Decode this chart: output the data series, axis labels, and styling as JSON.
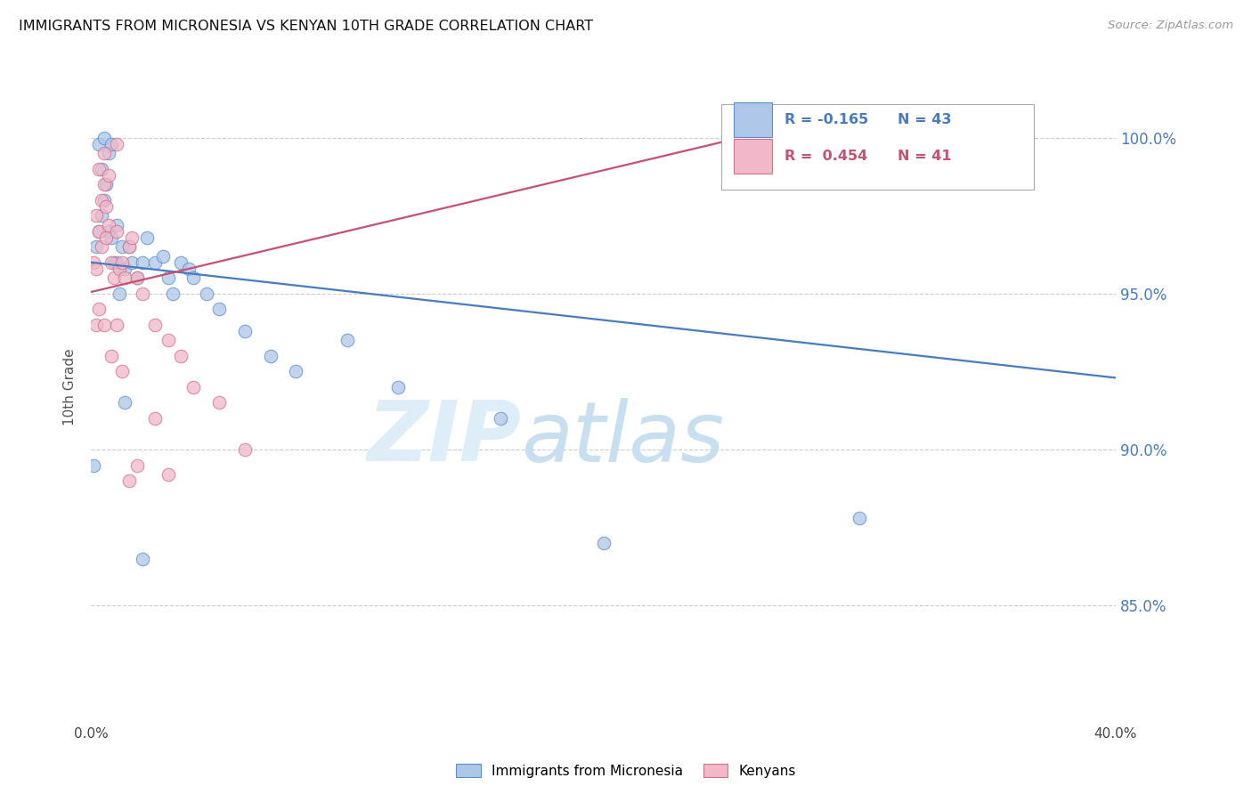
{
  "title": "IMMIGRANTS FROM MICRONESIA VS KENYAN 10TH GRADE CORRELATION CHART",
  "source": "Source: ZipAtlas.com",
  "ylabel": "10th Grade",
  "right_yticks": [
    "100.0%",
    "95.0%",
    "90.0%",
    "85.0%"
  ],
  "right_ytick_vals": [
    1.0,
    0.95,
    0.9,
    0.85
  ],
  "legend_blue_r": "R = -0.165",
  "legend_blue_n": "N = 43",
  "legend_pink_r": "R =  0.454",
  "legend_pink_n": "N = 41",
  "blue_color": "#aec6e8",
  "pink_color": "#f0b8c8",
  "blue_edge_color": "#5b8fc9",
  "pink_edge_color": "#d4708a",
  "blue_line_color": "#4a7abf",
  "pink_line_color": "#c85070",
  "background_color": "#ffffff",
  "grid_color": "#cccccc",
  "xmin": 0.0,
  "xmax": 0.4,
  "ymin": 0.818,
  "ymax": 1.022,
  "blue_line_x0": 0.0,
  "blue_line_x1": 0.4,
  "blue_line_y0": 0.96,
  "blue_line_y1": 0.923,
  "pink_line_x0": 0.0,
  "pink_line_x1": 0.305,
  "pink_line_y0": 0.9505,
  "pink_line_y1": 1.01,
  "blue_x": [
    0.001,
    0.002,
    0.003,
    0.003,
    0.004,
    0.004,
    0.005,
    0.005,
    0.006,
    0.007,
    0.007,
    0.008,
    0.008,
    0.009,
    0.01,
    0.01,
    0.011,
    0.012,
    0.013,
    0.015,
    0.016,
    0.018,
    0.02,
    0.022,
    0.025,
    0.028,
    0.03,
    0.032,
    0.035,
    0.038,
    0.04,
    0.045,
    0.05,
    0.06,
    0.07,
    0.08,
    0.1,
    0.12,
    0.16,
    0.2,
    0.013,
    0.02,
    0.3
  ],
  "blue_y": [
    0.895,
    0.965,
    0.97,
    0.998,
    0.975,
    0.99,
    0.98,
    1.0,
    0.985,
    0.995,
    0.97,
    0.968,
    0.998,
    0.96,
    0.972,
    0.96,
    0.95,
    0.965,
    0.958,
    0.965,
    0.96,
    0.955,
    0.96,
    0.968,
    0.96,
    0.962,
    0.955,
    0.95,
    0.96,
    0.958,
    0.955,
    0.95,
    0.945,
    0.938,
    0.93,
    0.925,
    0.935,
    0.92,
    0.91,
    0.87,
    0.915,
    0.865,
    0.878
  ],
  "pink_x": [
    0.001,
    0.002,
    0.002,
    0.003,
    0.003,
    0.004,
    0.004,
    0.005,
    0.005,
    0.006,
    0.006,
    0.007,
    0.007,
    0.008,
    0.009,
    0.01,
    0.01,
    0.011,
    0.012,
    0.013,
    0.015,
    0.016,
    0.018,
    0.02,
    0.025,
    0.03,
    0.035,
    0.04,
    0.05,
    0.06,
    0.002,
    0.003,
    0.005,
    0.008,
    0.012,
    0.018,
    0.025,
    0.03,
    0.01,
    0.3,
    0.015
  ],
  "pink_y": [
    0.96,
    0.958,
    0.975,
    0.97,
    0.99,
    0.98,
    0.965,
    0.985,
    0.995,
    0.978,
    0.968,
    0.972,
    0.988,
    0.96,
    0.955,
    0.97,
    0.998,
    0.958,
    0.96,
    0.955,
    0.965,
    0.968,
    0.955,
    0.95,
    0.94,
    0.935,
    0.93,
    0.92,
    0.915,
    0.9,
    0.94,
    0.945,
    0.94,
    0.93,
    0.925,
    0.895,
    0.91,
    0.892,
    0.94,
    1.0,
    0.89
  ]
}
